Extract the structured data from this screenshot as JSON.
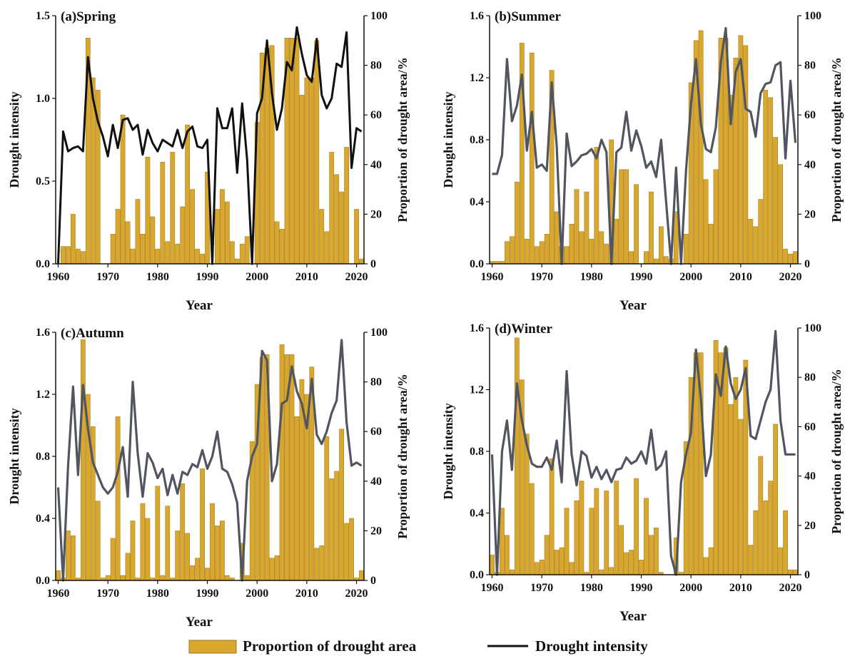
{
  "colors": {
    "bar_fill": "#D9A62E",
    "bar_stroke": "#9A7A1F",
    "line_dark": "#111111",
    "line_gray": "#505560"
  },
  "legend": {
    "bars_label": "Proportion of drought area",
    "line_label": "Drought intensity"
  },
  "chart_data": [
    {
      "type": "bar+line",
      "title": "(a)Spring",
      "xlabel": "Year",
      "ylabel": "Drought intensity",
      "y2label": "Proportion of drought area/%",
      "xlim": [
        1960,
        2021
      ],
      "ylim": [
        0,
        1.5
      ],
      "y2lim": [
        0,
        100
      ],
      "yticks": [
        0.0,
        0.5,
        1.0,
        1.5
      ],
      "y2ticks": [
        0,
        20,
        40,
        60,
        80,
        100
      ],
      "xticks": [
        1960,
        1970,
        1980,
        1990,
        2000,
        2010,
        2020
      ],
      "line_color": "#111111",
      "x": [
        1960,
        1961,
        1962,
        1963,
        1964,
        1965,
        1966,
        1967,
        1968,
        1969,
        1970,
        1971,
        1972,
        1973,
        1974,
        1975,
        1976,
        1977,
        1978,
        1979,
        1980,
        1981,
        1982,
        1983,
        1984,
        1985,
        1986,
        1987,
        1988,
        1989,
        1990,
        1991,
        1992,
        1993,
        1994,
        1995,
        1996,
        1997,
        1998,
        1999,
        2000,
        2001,
        2002,
        2003,
        2004,
        2005,
        2006,
        2007,
        2008,
        2009,
        2010,
        2011,
        2012,
        2013,
        2014,
        2015,
        2016,
        2017,
        2018,
        2019,
        2020,
        2021
      ],
      "bars": [
        0,
        7,
        7,
        20,
        6,
        5,
        91,
        75,
        70,
        0,
        0,
        12,
        22,
        60,
        17,
        6,
        26,
        12,
        43,
        19,
        6,
        41,
        9,
        45,
        8,
        23,
        56,
        30,
        6,
        4,
        37,
        0,
        22,
        30,
        25,
        9,
        2,
        8,
        11,
        0,
        57,
        85,
        87,
        88,
        17,
        14,
        91,
        91,
        91,
        68,
        75,
        75,
        90,
        22,
        13,
        45,
        36,
        29,
        47,
        0,
        22,
        2
      ],
      "intensity": [
        0,
        0.8,
        0.68,
        0.7,
        0.71,
        0.68,
        1.25,
        1.0,
        0.86,
        0.77,
        0.65,
        0.84,
        0.7,
        0.87,
        0.88,
        0.81,
        0.84,
        0.66,
        0.81,
        0.73,
        0.68,
        0.75,
        0.73,
        0.71,
        0.81,
        0.7,
        0.8,
        0.83,
        0.71,
        0.7,
        0.75,
        0,
        0.94,
        0.82,
        0.82,
        0.94,
        0.55,
        0.97,
        0.63,
        0,
        0.91,
        1.0,
        1.35,
        1.03,
        0.81,
        0.94,
        1.22,
        1.17,
        1.43,
        1.27,
        1.14,
        1.1,
        1.36,
        1.02,
        0.94,
        1.0,
        1.21,
        1.19,
        1.4,
        0.58,
        0.82,
        0.8
      ]
    },
    {
      "type": "bar+line",
      "title": "(b)Summer",
      "xlabel": "Year",
      "ylabel": "Drought intensity",
      "y2label": "Proportion of drought area/%",
      "xlim": [
        1960,
        2021
      ],
      "ylim": [
        0,
        1.6
      ],
      "y2lim": [
        0,
        100
      ],
      "yticks": [
        0.0,
        0.4,
        0.8,
        1.2,
        1.6
      ],
      "y2ticks": [
        0,
        20,
        40,
        60,
        80,
        100
      ],
      "xticks": [
        1960,
        1970,
        1980,
        1990,
        2000,
        2010,
        2020
      ],
      "line_color": "#505560",
      "x": [
        1960,
        1961,
        1962,
        1963,
        1964,
        1965,
        1966,
        1967,
        1968,
        1969,
        1970,
        1971,
        1972,
        1973,
        1974,
        1975,
        1976,
        1977,
        1978,
        1979,
        1980,
        1981,
        1982,
        1983,
        1984,
        1985,
        1986,
        1987,
        1988,
        1989,
        1990,
        1991,
        1992,
        1993,
        1994,
        1995,
        1996,
        1997,
        1998,
        1999,
        2000,
        2001,
        2002,
        2003,
        2004,
        2005,
        2006,
        2007,
        2008,
        2009,
        2010,
        2011,
        2012,
        2013,
        2014,
        2015,
        2016,
        2017,
        2018,
        2019,
        2020,
        2021
      ],
      "bars": [
        1,
        1,
        1,
        9,
        11,
        33,
        89,
        10,
        85,
        7,
        9,
        12,
        78,
        21,
        7,
        7,
        16,
        30,
        13,
        29,
        10,
        47,
        13,
        8,
        50,
        18,
        38,
        38,
        5,
        32,
        0,
        5,
        29,
        2,
        15,
        3,
        2,
        21,
        0,
        12,
        73,
        90,
        94,
        34,
        16,
        38,
        91,
        91,
        68,
        83,
        92,
        88,
        18,
        15,
        26,
        70,
        67,
        51,
        40,
        6,
        4,
        5
      ],
      "intensity": [
        0.58,
        0.58,
        0.7,
        1.32,
        0.92,
        1.02,
        1.22,
        0.73,
        0.98,
        0.62,
        0.64,
        0.6,
        1.17,
        0.76,
        0,
        0.84,
        0.63,
        0.66,
        0.7,
        0.71,
        0.74,
        0.68,
        0.8,
        0.72,
        0,
        0.72,
        0.75,
        0.98,
        0.73,
        0.86,
        0.76,
        0.62,
        0.66,
        0.56,
        0.8,
        0.4,
        0,
        0.62,
        0,
        0.6,
        1.03,
        1.32,
        0.9,
        0.74,
        0.72,
        0.88,
        1.3,
        1.52,
        0.9,
        1.24,
        1.32,
        1.0,
        0.98,
        0.82,
        1.1,
        1.16,
        1.17,
        1.28,
        1.3,
        0.68,
        1.18,
        0.78
      ]
    },
    {
      "type": "bar+line",
      "title": "(c)Autumn",
      "xlabel": "Year",
      "ylabel": "Drought intensity",
      "y2label": "Proportion of drought area/%",
      "xlim": [
        1960,
        2021
      ],
      "ylim": [
        0,
        1.6
      ],
      "y2lim": [
        0,
        100
      ],
      "yticks": [
        0.0,
        0.4,
        0.8,
        1.2,
        1.6
      ],
      "y2ticks": [
        0,
        20,
        40,
        60,
        80,
        100
      ],
      "xticks": [
        1960,
        1970,
        1980,
        1990,
        2000,
        2010,
        2020
      ],
      "line_color": "#505560",
      "x": [
        1960,
        1961,
        1962,
        1963,
        1964,
        1965,
        1966,
        1967,
        1968,
        1969,
        1970,
        1971,
        1972,
        1973,
        1974,
        1975,
        1976,
        1977,
        1978,
        1979,
        1980,
        1981,
        1982,
        1983,
        1984,
        1985,
        1986,
        1987,
        1988,
        1989,
        1990,
        1991,
        1992,
        1993,
        1994,
        1995,
        1996,
        1997,
        1998,
        1999,
        2000,
        2001,
        2002,
        2003,
        2004,
        2005,
        2006,
        2007,
        2008,
        2009,
        2010,
        2011,
        2012,
        2013,
        2014,
        2015,
        2016,
        2017,
        2018,
        2019,
        2020,
        2021
      ],
      "bars": [
        4,
        1,
        20,
        18,
        1,
        97,
        75,
        62,
        32,
        1,
        2,
        17,
        66,
        2,
        11,
        24,
        1,
        31,
        25,
        1,
        38,
        2,
        30,
        1,
        20,
        39,
        19,
        6,
        9,
        45,
        5,
        31,
        22,
        24,
        2,
        1,
        0,
        15,
        2,
        56,
        79,
        90,
        91,
        9,
        10,
        95,
        91,
        91,
        66,
        81,
        75,
        86,
        13,
        14,
        58,
        41,
        44,
        61,
        23,
        25,
        1,
        4
      ],
      "intensity": [
        0.6,
        0,
        0.74,
        1.25,
        0.68,
        1.26,
        0.98,
        0.76,
        0.68,
        0.6,
        0.56,
        0.6,
        0.7,
        0.86,
        0.54,
        1.28,
        0.82,
        0.54,
        0.82,
        0.76,
        0.66,
        0.72,
        0.55,
        0.68,
        0.56,
        0.7,
        0.68,
        0.75,
        0.73,
        0.84,
        0.72,
        0.8,
        0.96,
        0.72,
        0.7,
        0.62,
        0.5,
        0,
        0.64,
        0.8,
        0.88,
        1.48,
        1.42,
        0.64,
        0.75,
        1.14,
        1.16,
        1.38,
        1.22,
        1.14,
        0.98,
        1.3,
        0.94,
        0.88,
        0.96,
        1.08,
        1.16,
        1.55,
        1.02,
        0.74,
        0.76,
        0.74
      ]
    },
    {
      "type": "bar+line",
      "title": "(d)Winter",
      "xlabel": "Year",
      "ylabel": "Drought intensity",
      "y2label": "Proportion of drought area/%",
      "xlim": [
        1960,
        2021
      ],
      "ylim": [
        0,
        1.6
      ],
      "y2lim": [
        0,
        100
      ],
      "yticks": [
        0.0,
        0.4,
        0.8,
        1.2,
        1.6
      ],
      "y2ticks": [
        0,
        20,
        40,
        60,
        80,
        100
      ],
      "xticks": [
        1960,
        1970,
        1980,
        1990,
        2000,
        2010,
        2020
      ],
      "line_color": "#505560",
      "x": [
        1960,
        1961,
        1962,
        1963,
        1964,
        1965,
        1966,
        1967,
        1968,
        1969,
        1970,
        1971,
        1972,
        1973,
        1974,
        1975,
        1976,
        1977,
        1978,
        1979,
        1980,
        1981,
        1982,
        1983,
        1984,
        1985,
        1986,
        1987,
        1988,
        1989,
        1990,
        1991,
        1992,
        1993,
        1994,
        1995,
        1996,
        1997,
        1998,
        1999,
        2000,
        2001,
        2002,
        2003,
        2004,
        2005,
        2006,
        2007,
        2008,
        2009,
        2010,
        2011,
        2012,
        2013,
        2014,
        2015,
        2016,
        2017,
        2018,
        2019,
        2020,
        2021
      ],
      "bars": [
        8,
        1,
        27,
        16,
        2,
        96,
        79,
        57,
        37,
        5,
        6,
        16,
        47,
        10,
        11,
        27,
        5,
        30,
        38,
        1,
        27,
        35,
        2,
        34,
        3,
        38,
        20,
        9,
        10,
        39,
        6,
        31,
        16,
        19,
        1,
        0,
        0,
        15,
        1,
        54,
        80,
        90,
        90,
        7,
        11,
        95,
        90,
        92,
        69,
        80,
        63,
        87,
        12,
        26,
        48,
        30,
        38,
        61,
        11,
        26,
        2,
        2
      ],
      "intensity": [
        0.78,
        0,
        0.8,
        1.0,
        0.68,
        1.24,
        1.0,
        0.84,
        0.72,
        0.7,
        0.7,
        0.76,
        0.68,
        0.87,
        0.6,
        1.32,
        0.78,
        0.58,
        0.8,
        0.77,
        0.63,
        0.7,
        0.62,
        0.68,
        0.6,
        0.68,
        0.69,
        0.76,
        0.72,
        0.74,
        0.8,
        0.72,
        0.94,
        0.68,
        0.71,
        0.8,
        0.12,
        0,
        0.6,
        0.78,
        0.92,
        1.46,
        1.14,
        0.64,
        0.78,
        1.3,
        1.16,
        1.48,
        1.24,
        1.14,
        1.2,
        1.34,
        0.9,
        0.88,
        1.0,
        1.12,
        1.2,
        1.58,
        1.0,
        0.78,
        0.78,
        0.78
      ]
    }
  ]
}
